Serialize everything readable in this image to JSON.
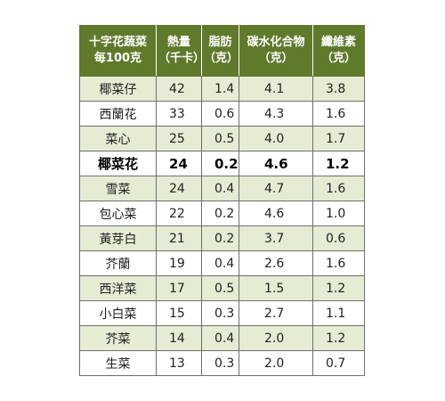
{
  "table": {
    "headers": [
      [
        "十字花蔬菜",
        "每100克"
      ],
      [
        "熱量",
        "（千卡）"
      ],
      [
        "脂肪",
        "（克）"
      ],
      [
        "碳水化合物",
        "（克）"
      ],
      [
        "纖維素",
        "（克）"
      ]
    ],
    "rows": [
      {
        "name": "椰菜仔",
        "cal": "42",
        "fat": "1.4",
        "carb": "4.1",
        "fiber": "3.8"
      },
      {
        "name": "西蘭花",
        "cal": "33",
        "fat": "0.6",
        "carb": "4.3",
        "fiber": "1.6"
      },
      {
        "name": "菜心",
        "cal": "25",
        "fat": "0.5",
        "carb": "4.0",
        "fiber": "1.7"
      },
      {
        "name": "椰菜花",
        "cal": "24",
        "fat": "0.2",
        "carb": "4.6",
        "fiber": "1.2"
      },
      {
        "name": "雪菜",
        "cal": "24",
        "fat": "0.4",
        "carb": "4.7",
        "fiber": "1.6"
      },
      {
        "name": "包心菜",
        "cal": "22",
        "fat": "0.2",
        "carb": "4.6",
        "fiber": "1.0"
      },
      {
        "name": "黃芽白",
        "cal": "21",
        "fat": "0.2",
        "carb": "3.7",
        "fiber": "0.6"
      },
      {
        "name": "芥蘭",
        "cal": "19",
        "fat": "0.4",
        "carb": "2.6",
        "fiber": "1.6"
      },
      {
        "name": "西洋菜",
        "cal": "17",
        "fat": "0.5",
        "carb": "1.5",
        "fiber": "1.2"
      },
      {
        "name": "小白菜",
        "cal": "15",
        "fat": "0.3",
        "carb": "2.7",
        "fiber": "1.1"
      },
      {
        "name": "芥菜",
        "cal": "14",
        "fat": "0.4",
        "carb": "2.0",
        "fiber": "1.2"
      },
      {
        "name": "生菜",
        "cal": "13",
        "fat": "0.3",
        "carb": "2.0",
        "fiber": "0.7"
      }
    ],
    "highlighted_row": "椰菜花",
    "colors": {
      "header_bg": "#5f7a2b",
      "header_text": "#ffffff",
      "shaded_row_bg": "#e6ebd3",
      "plain_row_bg": "#ffffff",
      "border": "#6f6f6f"
    }
  }
}
